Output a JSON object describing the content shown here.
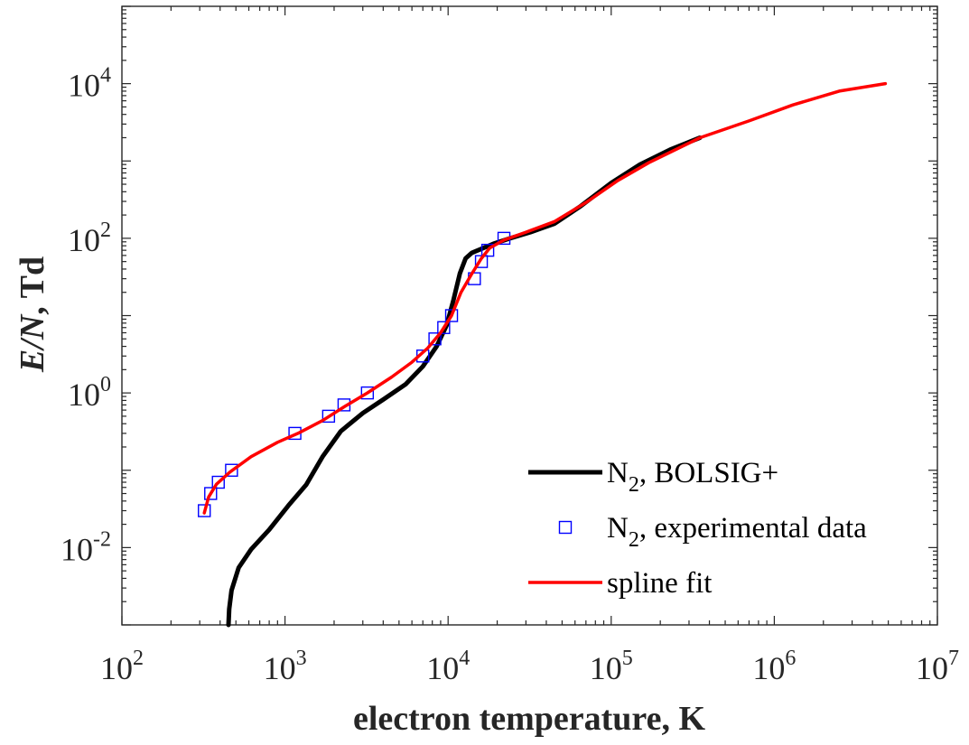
{
  "chart_data": {
    "type": "line",
    "x_scale": "log",
    "y_scale": "log",
    "xlim": [
      100,
      10000000
    ],
    "ylim": [
      0.001,
      100000
    ],
    "xlabel": "electron temperature,  K",
    "ylabel": {
      "italic": "E/N",
      "rest": ",  Td"
    },
    "grid": false,
    "legend_position": "bottom-right",
    "x_ticks": [
      {
        "base": "10",
        "exp": "2",
        "value": 100
      },
      {
        "base": "10",
        "exp": "3",
        "value": 1000
      },
      {
        "base": "10",
        "exp": "4",
        "value": 10000
      },
      {
        "base": "10",
        "exp": "5",
        "value": 100000
      },
      {
        "base": "10",
        "exp": "6",
        "value": 1000000
      },
      {
        "base": "10",
        "exp": "7",
        "value": 10000000
      }
    ],
    "y_ticks": [
      {
        "base": "10",
        "exp": "-2",
        "value": 0.01
      },
      {
        "base": "10",
        "exp": "0",
        "value": 1
      },
      {
        "base": "10",
        "exp": "2",
        "value": 100
      },
      {
        "base": "10",
        "exp": "4",
        "value": 10000
      }
    ],
    "series": [
      {
        "key": "bolsig",
        "name": {
          "main": "N",
          "sub": "2",
          "rest": ", BOLSIG+"
        },
        "style": "line",
        "color": "#000000",
        "points": [
          [
            450,
            0.001
          ],
          [
            455,
            0.0016
          ],
          [
            470,
            0.0028
          ],
          [
            520,
            0.0055
          ],
          [
            620,
            0.0095
          ],
          [
            800,
            0.017
          ],
          [
            1050,
            0.035
          ],
          [
            1350,
            0.065
          ],
          [
            1700,
            0.15
          ],
          [
            2200,
            0.32
          ],
          [
            3000,
            0.55
          ],
          [
            4000,
            0.82
          ],
          [
            5500,
            1.3
          ],
          [
            7000,
            2.2
          ],
          [
            8500,
            4.0
          ],
          [
            9800,
            7.5
          ],
          [
            10800,
            16
          ],
          [
            11800,
            35
          ],
          [
            12800,
            55
          ],
          [
            14000,
            65
          ],
          [
            16000,
            73
          ],
          [
            19000,
            85
          ],
          [
            24000,
            100
          ],
          [
            32000,
            120
          ],
          [
            45000,
            155
          ],
          [
            65000,
            260
          ],
          [
            100000,
            520
          ],
          [
            150000,
            900
          ],
          [
            230000,
            1400
          ],
          [
            350000,
            2000
          ]
        ]
      },
      {
        "key": "experimental",
        "name": {
          "main": "N",
          "sub": "2",
          "rest": ", experimental data"
        },
        "style": "marker",
        "color": "#0000ff",
        "points": [
          [
            320,
            0.03
          ],
          [
            350,
            0.05
          ],
          [
            390,
            0.07
          ],
          [
            470,
            0.1
          ],
          [
            1150,
            0.3
          ],
          [
            1850,
            0.5
          ],
          [
            2300,
            0.7
          ],
          [
            3200,
            1.0
          ],
          [
            7000,
            3.0
          ],
          [
            8300,
            5.0
          ],
          [
            9400,
            7.0
          ],
          [
            10500,
            10.0
          ],
          [
            14500,
            30.0
          ],
          [
            16000,
            50.0
          ],
          [
            17500,
            70.0
          ],
          [
            22000,
            100.0
          ]
        ]
      },
      {
        "key": "spline",
        "name": {
          "main": "spline fit"
        },
        "style": "line",
        "color": "#ff0000",
        "points": [
          [
            320,
            0.028
          ],
          [
            340,
            0.045
          ],
          [
            380,
            0.066
          ],
          [
            460,
            0.095
          ],
          [
            620,
            0.15
          ],
          [
            900,
            0.23
          ],
          [
            1200,
            0.3
          ],
          [
            1700,
            0.44
          ],
          [
            2300,
            0.66
          ],
          [
            3200,
            1.0
          ],
          [
            4500,
            1.6
          ],
          [
            6000,
            2.5
          ],
          [
            7500,
            3.8
          ],
          [
            9000,
            6.0
          ],
          [
            10500,
            10.0
          ],
          [
            12000,
            20
          ],
          [
            14000,
            35
          ],
          [
            16000,
            55
          ],
          [
            18000,
            75
          ],
          [
            22000,
            95
          ],
          [
            30000,
            120
          ],
          [
            45000,
            165
          ],
          [
            70000,
            290
          ],
          [
            110000,
            560
          ],
          [
            170000,
            950
          ],
          [
            350000,
            2000
          ],
          [
            700000,
            3300
          ],
          [
            1300000,
            5300
          ],
          [
            2500000,
            8000
          ],
          [
            4800000,
            10000
          ]
        ]
      }
    ]
  }
}
